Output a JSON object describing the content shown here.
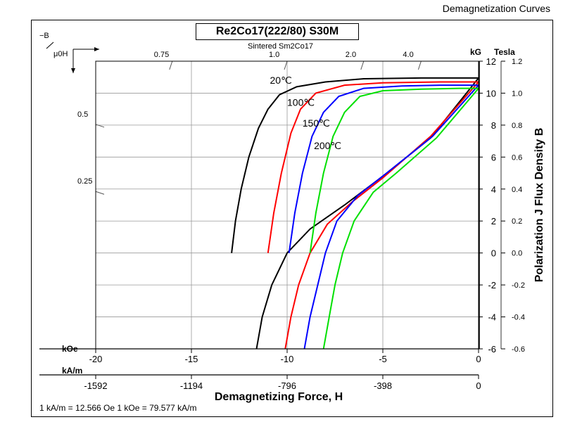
{
  "header": {
    "page_title": "Demagnetization Curves",
    "chart_title": "Re2Co17(222/80) S30M",
    "material_label": "Sintered Sm2Co17",
    "footer_note": "1 kA/m = 12.566 Oe 1 kOe = 79.577 kA/m"
  },
  "chart_data": {
    "type": "line",
    "title": "Re2Co17(222/80) S30M",
    "subtitle": "Sintered Sm2Co17",
    "xlabel": "Demagnetizing Force, H",
    "ylabel": "Polarization J Flux Density B",
    "x_unit_koe": "kOe",
    "x_unit_kam": "kA/m",
    "y_unit_left": "kG",
    "y_unit_right": "Tesla",
    "corner_label_top": "−B",
    "corner_label_bottom": "μ0H",
    "xlim": [
      -20,
      0
    ],
    "ylim": [
      -6,
      12
    ],
    "x_ticks_koe": [
      -20,
      -15,
      -10,
      -5,
      0
    ],
    "x_ticks_koe_labels": [
      "-20",
      "-15",
      "-10",
      "-5",
      "0"
    ],
    "x_ticks_kam": [
      -20,
      -15,
      -10,
      -5,
      0
    ],
    "x_ticks_kam_labels": [
      "-1592",
      "-1194",
      "-796",
      "-398",
      "0"
    ],
    "y_ticks_kg": [
      -6,
      -4,
      -2,
      0,
      2,
      4,
      6,
      8,
      10,
      12
    ],
    "y_ticks_kg_labels": [
      "-6",
      "-4",
      "-2",
      "0",
      "2",
      "4",
      "6",
      "8",
      "10",
      "12"
    ],
    "y_ticks_tesla": [
      -6,
      -4,
      -2,
      0,
      2,
      4,
      6,
      8,
      10,
      12
    ],
    "y_ticks_tesla_labels": [
      "-0.6",
      "-0.4",
      "-0.2",
      "0.0",
      "0.2",
      "0.4",
      "0.6",
      "0.8",
      "1.0",
      "1.2"
    ],
    "permeance_ticks": [
      {
        "x": -16.0,
        "label": "0.75"
      },
      {
        "x": -10.0,
        "label": "1.0"
      },
      {
        "x": -6.0,
        "label": "2.0"
      },
      {
        "x": -3.0,
        "label": "4.0"
      }
    ],
    "permeance_left_ticks": [
      {
        "y": 8.4,
        "label": "0.5"
      },
      {
        "y": 4.2,
        "label": "0.25"
      }
    ],
    "grid": true,
    "series": [
      {
        "name": "20℃",
        "color": "#000000",
        "J": [
          [
            -12.9,
            0.0
          ],
          [
            -12.7,
            2.0
          ],
          [
            -12.4,
            4.0
          ],
          [
            -12.0,
            6.0
          ],
          [
            -11.5,
            7.8
          ],
          [
            -11.0,
            9.0
          ],
          [
            -10.4,
            9.9
          ],
          [
            -9.5,
            10.4
          ],
          [
            -8.0,
            10.7
          ],
          [
            -6.0,
            10.9
          ],
          [
            -3.0,
            10.95
          ],
          [
            0.0,
            10.95
          ]
        ],
        "B": [
          [
            -11.6,
            -6.0
          ],
          [
            -11.3,
            -4.0
          ],
          [
            -10.8,
            -2.0
          ],
          [
            -10.0,
            0.0
          ],
          [
            -8.8,
            1.5
          ],
          [
            -7.0,
            3.0
          ],
          [
            -5.0,
            4.8
          ],
          [
            -2.5,
            7.2
          ],
          [
            0.0,
            10.95
          ]
        ]
      },
      {
        "name": "100℃",
        "color": "#ff0000",
        "J": [
          [
            -11.0,
            0.0
          ],
          [
            -10.7,
            2.5
          ],
          [
            -10.3,
            5.0
          ],
          [
            -9.8,
            7.5
          ],
          [
            -9.3,
            9.0
          ],
          [
            -8.5,
            10.0
          ],
          [
            -7.0,
            10.5
          ],
          [
            -5.0,
            10.65
          ],
          [
            -2.0,
            10.7
          ],
          [
            0.0,
            10.7
          ]
        ],
        "B": [
          [
            -10.1,
            -6.0
          ],
          [
            -9.8,
            -4.0
          ],
          [
            -9.4,
            -2.0
          ],
          [
            -8.8,
            0.0
          ],
          [
            -7.9,
            1.8
          ],
          [
            -6.6,
            3.2
          ],
          [
            -5.0,
            4.7
          ],
          [
            -2.5,
            7.3
          ],
          [
            0.0,
            10.7
          ]
        ]
      },
      {
        "name": "150℃",
        "color": "#0000ff",
        "J": [
          [
            -9.9,
            0.0
          ],
          [
            -9.6,
            2.5
          ],
          [
            -9.2,
            5.0
          ],
          [
            -8.7,
            7.3
          ],
          [
            -8.1,
            8.8
          ],
          [
            -7.3,
            9.8
          ],
          [
            -6.0,
            10.3
          ],
          [
            -4.0,
            10.45
          ],
          [
            -2.0,
            10.5
          ],
          [
            0.0,
            10.5
          ]
        ],
        "B": [
          [
            -9.1,
            -6.0
          ],
          [
            -8.8,
            -4.0
          ],
          [
            -8.4,
            -2.0
          ],
          [
            -8.0,
            0.0
          ],
          [
            -7.4,
            2.0
          ],
          [
            -6.3,
            3.6
          ],
          [
            -4.8,
            5.0
          ],
          [
            -2.4,
            7.3
          ],
          [
            0.0,
            10.5
          ]
        ]
      },
      {
        "name": "200℃",
        "color": "#00e000",
        "J": [
          [
            -8.8,
            0.0
          ],
          [
            -8.5,
            2.5
          ],
          [
            -8.1,
            5.0
          ],
          [
            -7.6,
            7.3
          ],
          [
            -7.0,
            8.8
          ],
          [
            -6.2,
            9.8
          ],
          [
            -5.0,
            10.15
          ],
          [
            -3.0,
            10.25
          ],
          [
            -1.0,
            10.3
          ],
          [
            0.0,
            10.3
          ]
        ],
        "B": [
          [
            -8.1,
            -6.0
          ],
          [
            -7.8,
            -4.0
          ],
          [
            -7.5,
            -2.0
          ],
          [
            -7.1,
            0.0
          ],
          [
            -6.5,
            2.0
          ],
          [
            -5.5,
            3.8
          ],
          [
            -4.3,
            5.0
          ],
          [
            -2.2,
            7.2
          ],
          [
            0.0,
            10.3
          ]
        ]
      }
    ],
    "curve_labels": [
      {
        "text": "20℃",
        "x": -10.9,
        "y": 10.6
      },
      {
        "text": "100℃",
        "x": -10.0,
        "y": 9.2
      },
      {
        "text": "150℃",
        "x": -9.2,
        "y": 7.9
      },
      {
        "text": "200℃",
        "x": -8.6,
        "y": 6.5
      }
    ]
  }
}
